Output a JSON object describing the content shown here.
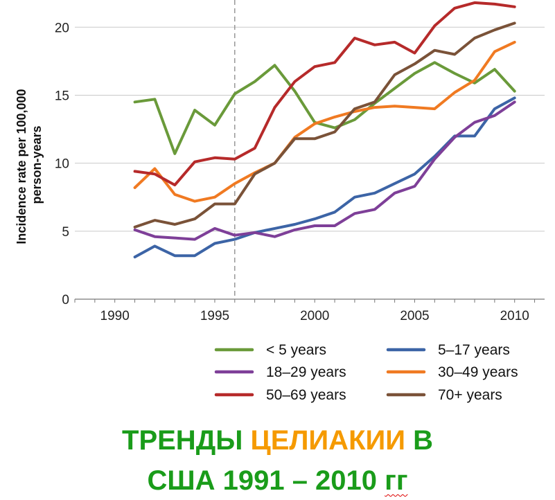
{
  "chart_data": {
    "type": "line",
    "ylabel_line1": "Incidence rate per 100,000",
    "ylabel_line2": "person-years",
    "xlim": [
      1988,
      2011.5
    ],
    "ylim": [
      0,
      22
    ],
    "xticks": [
      1990,
      1995,
      2000,
      2005,
      2010
    ],
    "yticks": [
      0,
      5,
      10,
      15,
      20
    ],
    "grid": "horizontal",
    "reference_line_x": 1996,
    "legend_position": "bottom",
    "x": [
      1991,
      1992,
      1993,
      1994,
      1995,
      1996,
      1997,
      1998,
      1999,
      2000,
      2001,
      2002,
      2003,
      2004,
      2005,
      2006,
      2007,
      2008,
      2009,
      2010
    ],
    "series": [
      {
        "name": "< 5 years",
        "color": "#6a9a3a",
        "values": [
          14.5,
          14.7,
          10.7,
          13.9,
          12.8,
          15.1,
          16.0,
          17.2,
          15.3,
          13.0,
          12.6,
          13.2,
          14.4,
          15.5,
          16.6,
          17.4,
          16.6,
          15.9,
          16.9,
          15.3
        ]
      },
      {
        "name": "5–17 years",
        "color": "#3c64a6",
        "values": [
          3.1,
          3.9,
          3.2,
          3.2,
          4.1,
          4.4,
          4.9,
          5.2,
          5.5,
          5.9,
          6.4,
          7.5,
          7.8,
          8.5,
          9.2,
          10.5,
          12.0,
          12.0,
          14.0,
          14.8
        ]
      },
      {
        "name": "18–29 years",
        "color": "#7e3f98",
        "values": [
          5.1,
          4.6,
          4.5,
          4.4,
          5.2,
          4.7,
          4.9,
          4.6,
          5.1,
          5.4,
          5.4,
          6.3,
          6.6,
          7.8,
          8.3,
          10.3,
          11.9,
          13.0,
          13.5,
          14.5
        ]
      },
      {
        "name": "30–49 years",
        "color": "#f07a22",
        "values": [
          8.2,
          9.6,
          7.7,
          7.2,
          7.5,
          8.5,
          9.3,
          10.0,
          11.9,
          12.9,
          13.4,
          13.8,
          14.1,
          14.2,
          14.1,
          14.0,
          15.2,
          16.1,
          18.2,
          18.9
        ]
      },
      {
        "name": "50–69 years",
        "color": "#b62a2a",
        "values": [
          9.4,
          9.2,
          8.4,
          10.1,
          10.4,
          10.3,
          11.1,
          14.1,
          16.0,
          17.1,
          17.4,
          19.2,
          18.7,
          18.9,
          18.1,
          20.1,
          21.4,
          21.8,
          21.7,
          21.5
        ]
      },
      {
        "name": "70+ years",
        "color": "#7a5238",
        "values": [
          5.3,
          5.8,
          5.5,
          5.9,
          7.0,
          7.0,
          9.2,
          10.0,
          11.8,
          11.8,
          12.3,
          14.0,
          14.5,
          16.5,
          17.3,
          18.3,
          18.0,
          19.2,
          19.8,
          20.3
        ]
      }
    ]
  },
  "caption": {
    "line1_part1": "ТРЕНДЫ ",
    "line1_part2": "ЦЕЛИАКИИ",
    "line1_part3": " В",
    "line2_part1": "США 1991 – 2010 ",
    "line2_part2": "гг"
  }
}
